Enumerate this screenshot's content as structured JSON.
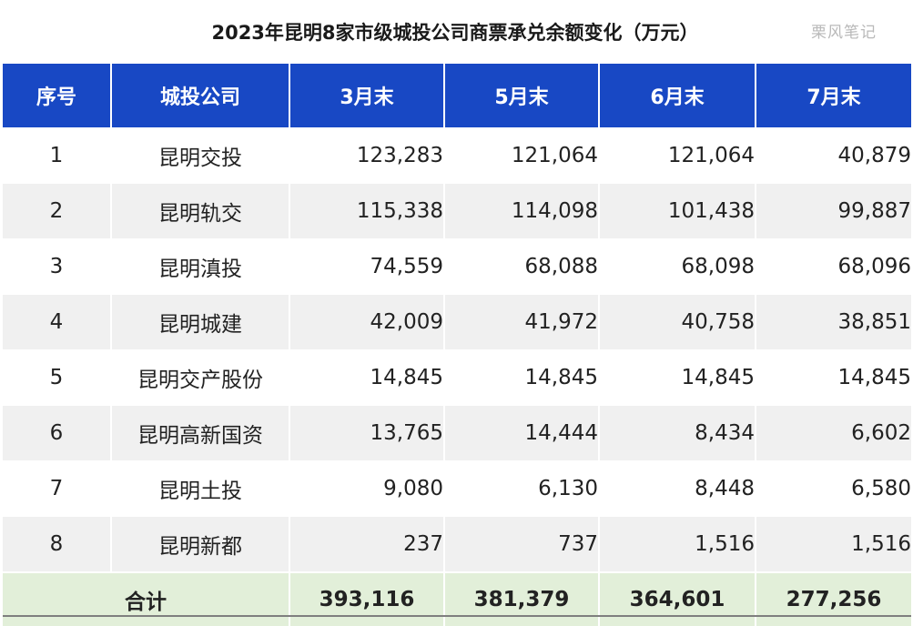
{
  "title": "2023年昆明8家市级城投公司商票承兑余额变化（万元）",
  "watermark": "栗风笔记",
  "header": [
    "序号",
    "城投公司",
    "3月末",
    "5月末",
    "6月末",
    "7月末"
  ],
  "rows": [
    {
      "no": "1",
      "company": "昆明交投",
      "mar": "123,283",
      "may": "121,064",
      "jun": "121,064",
      "jul": "40,879"
    },
    {
      "no": "2",
      "company": "昆明轨交",
      "mar": "115,338",
      "may": "114,098",
      "jun": "101,438",
      "jul": "99,887"
    },
    {
      "no": "3",
      "company": "昆明滇投",
      "mar": "74,559",
      "may": "68,088",
      "jun": "68,098",
      "jul": "68,096"
    },
    {
      "no": "4",
      "company": "昆明城建",
      "mar": "42,009",
      "may": "41,972",
      "jun": "40,758",
      "jul": "38,851"
    },
    {
      "no": "5",
      "company": "昆明交产股份",
      "mar": "14,845",
      "may": "14,845",
      "jun": "14,845",
      "jul": "14,845"
    },
    {
      "no": "6",
      "company": "昆明高新国资",
      "mar": "13,765",
      "may": "14,444",
      "jun": "8,434",
      "jul": "6,602"
    },
    {
      "no": "7",
      "company": "昆明土投",
      "mar": "9,080",
      "may": "6,130",
      "jun": "8,448",
      "jul": "6,580"
    },
    {
      "no": "8",
      "company": "昆明新都",
      "mar": "237",
      "may": "737",
      "jun": "1,516",
      "jul": "1,516"
    }
  ],
  "total": {
    "label": "合计",
    "mar": "393,116",
    "may": "381,379",
    "jun": "364,601",
    "jul": "277,256"
  },
  "colors": {
    "header_bg": "#1848c4",
    "total_bg": "#e2efd9",
    "stripe_bg": "#f0f0f0"
  }
}
